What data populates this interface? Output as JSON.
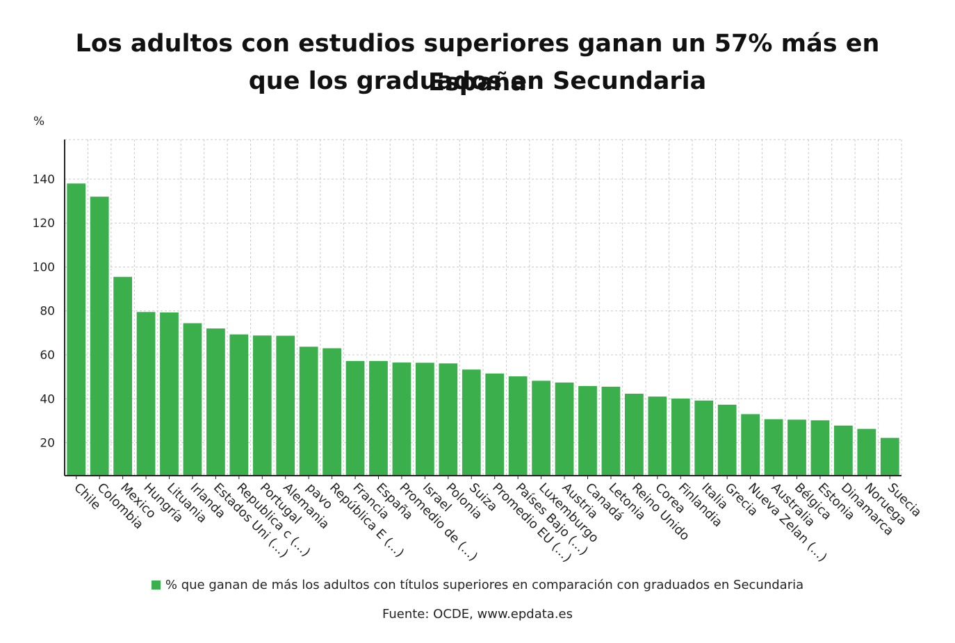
{
  "title_lines": [
    "Los adultos con estudios superiores ganan un 57% más en España",
    "que los graduados en Secundaria"
  ],
  "source": "Fuente: OCDE, www.epdata.es",
  "colors": {
    "bar": "#3aaf4c",
    "grid": "#c8c8c8",
    "axis": "#222222",
    "text": "#222222"
  },
  "chart_data": {
    "type": "bar",
    "title": "Los adultos con estudios superiores ganan un 57% más en España que los graduados en Secundaria",
    "ylabel": "%",
    "xlabel": "",
    "ylim": [
      5,
      158
    ],
    "yticks": [
      20,
      40,
      60,
      80,
      100,
      120,
      140
    ],
    "grid": true,
    "legend_position": "bottom",
    "categories": [
      "Chile",
      "Colombia",
      "Mexico",
      "Hungría",
      "Lituania",
      "Irlanda",
      "Estados Uni (...)",
      "Republica c (...)",
      "Portugal",
      "Alemania",
      "pavo",
      "República E (...)",
      "Francia",
      "España",
      "Promedio de (...)",
      "Israel",
      "Polonia",
      "Suiza",
      "Promedio EU (...)",
      "Países Bajo (...)",
      "Luxemburgo",
      "Austria",
      "Canadá",
      "Letonia",
      "Reino Unido",
      "Corea",
      "Finlandia",
      "Italia",
      "Grecia",
      "Nueva Zelan (...)",
      "Australia",
      "Bélgica",
      "Estonia",
      "Dinamarca",
      "Noruega",
      "Suecia"
    ],
    "series": [
      {
        "name": "% que ganan de más los adultos con títulos superiores en comparación con graduados en Secundaria",
        "color": "#3aaf4c",
        "values": [
          138,
          132,
          95.5,
          79.5,
          79.3,
          74.4,
          72,
          69.3,
          68.8,
          68.7,
          63.7,
          63,
          57.2,
          57.2,
          56.5,
          56.4,
          56.1,
          53.3,
          51.5,
          50.2,
          48.2,
          47.4,
          45.8,
          45.5,
          42.3,
          41,
          40.1,
          39.2,
          37.3,
          33,
          30.7,
          30.5,
          30.2,
          27.8,
          26.3,
          22.2
        ]
      }
    ]
  }
}
